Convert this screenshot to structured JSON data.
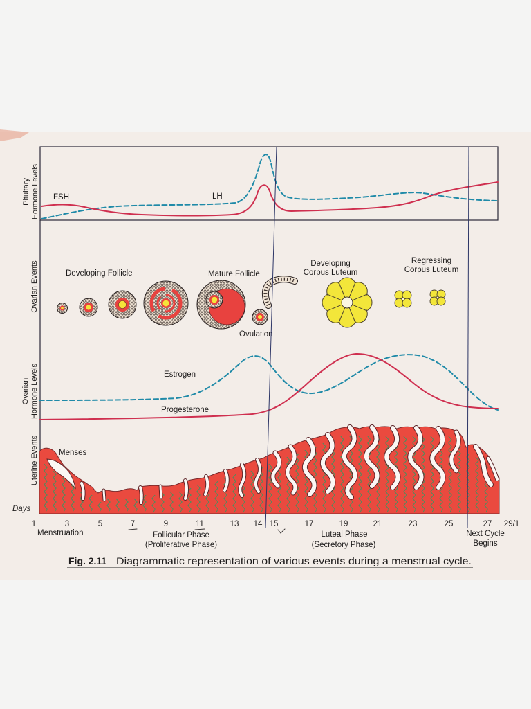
{
  "panel_labels": {
    "pituitary": [
      "Pituitary",
      "Hormone Levels"
    ],
    "ovarian_events": "Ovarian Events",
    "ovarian_hormones": [
      "Ovarian",
      "Hormone Levels"
    ],
    "uterine_events": "Uterine Events"
  },
  "pituitary_hormones": {
    "fsh": "FSH",
    "lh": "LH"
  },
  "ovarian_events": {
    "developing_follicle": "Developing Follicle",
    "mature_follicle": "Mature Follicle",
    "ovulation": "Ovulation",
    "developing_corpus_luteum": [
      "Developing",
      "Corpus Luteum"
    ],
    "regressing_corpus_luteum": [
      "Regressing",
      "Corpus Luteum"
    ]
  },
  "ovarian_hormones": {
    "estrogen": "Estrogen",
    "progesterone": "Progesterone"
  },
  "uterine_events": {
    "menses": "Menses"
  },
  "days": {
    "label": "Days",
    "ticks": [
      "1",
      "3",
      "5",
      "7",
      "9",
      "11",
      "13",
      "14",
      "15",
      "17",
      "19",
      "21",
      "23",
      "25",
      "27",
      "29/1"
    ]
  },
  "phases": {
    "menstruation": "Menstruation",
    "follicular": [
      "Follicular Phase",
      "(Proliferative Phase)"
    ],
    "luteal": [
      "Luteal Phase",
      "(Secretory Phase)"
    ],
    "next_cycle": [
      "Next Cycle",
      "Begins"
    ]
  },
  "caption": {
    "label": "Fig. 2.11",
    "text": "Diagrammatic representation of various events during a menstrual cycle."
  },
  "colors": {
    "fsh_curve": "#cf2f4f",
    "lh_curve": "#1f8aa8",
    "estrogen_curve": "#1f8aa8",
    "progesterone_curve": "#cf2f4f",
    "endometrium": "#ea4a3f",
    "corpus_luteum": "#f3e63a",
    "figure_number": "#c4262b"
  }
}
